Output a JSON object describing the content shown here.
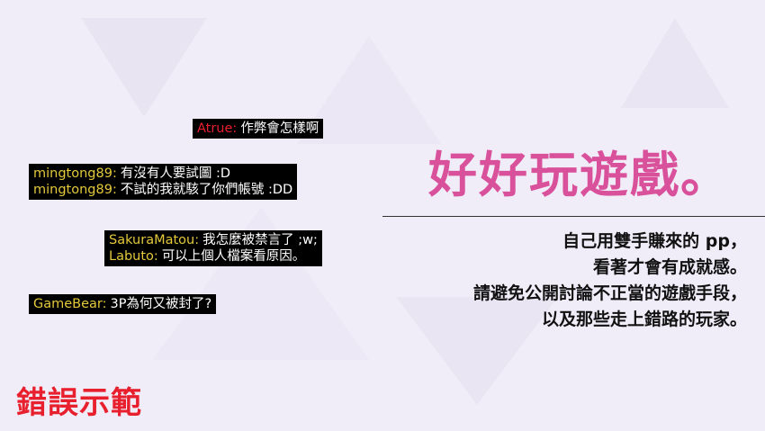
{
  "colors": {
    "background": "#f0edf8",
    "user_red": "#e8202e",
    "user_yellow": "#e3c93b",
    "title_pink": "#d9519b",
    "label_red": "#e8202e"
  },
  "chat": [
    {
      "lines": [
        {
          "user": "Atrue:",
          "user_color": "#e8202e",
          "text": "作弊會怎樣啊"
        }
      ]
    },
    {
      "lines": [
        {
          "user": "mingtong89:",
          "user_color": "#e3c93b",
          "text": "有沒有人要試圖 :D"
        },
        {
          "user": "mingtong89:",
          "user_color": "#e3c93b",
          "text": "不試的我就駭了你們帳號 :DD"
        }
      ]
    },
    {
      "lines": [
        {
          "user": "SakuraMatou:",
          "user_color": "#e3c93b",
          "text": "我怎麼被禁言了 ;w;"
        },
        {
          "user": "Labuto:",
          "user_color": "#e3c93b",
          "text": "可以上個人檔案看原因。"
        }
      ]
    },
    {
      "lines": [
        {
          "user": "GameBear:",
          "user_color": "#e3c93b",
          "text": "3P為何又被封了?"
        }
      ]
    }
  ],
  "title": "好好玩遊戲。",
  "description": [
    "自己用雙手賺來的 pp，",
    "看著才會有成就感。",
    "請避免公開討論不正當的遊戲手段，",
    "以及那些走上錯路的玩家。"
  ],
  "bad_example_label": "錯誤示範"
}
